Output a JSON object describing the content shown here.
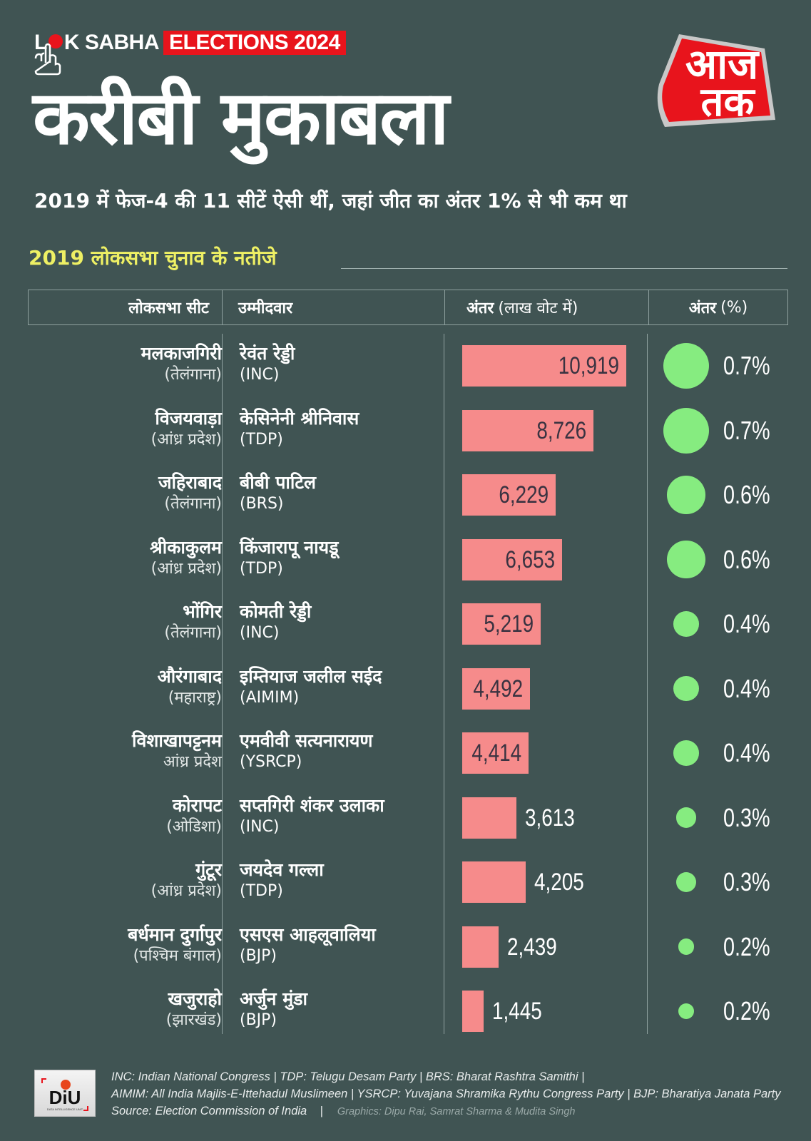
{
  "header": {
    "brand_lok_l": "L",
    "brand_lok_rest": "K SABHA",
    "brand_elections": "ELECTIONS 2024",
    "title": "करीबी मुकाबला",
    "logo_line1": "आज",
    "logo_line2": "तक",
    "subtitle": "2019 में फेज-4 की 11 सीटें ऐसी थीं, जहां जीत का अंतर 1% से भी कम था"
  },
  "section_title": "2019 लोकसभा चुनाव के नतीजे",
  "table_header": {
    "seat": "लोकसभा सीट",
    "candidate": "उम्मीदवार",
    "margin": "अंतर",
    "margin_unit": "(लाख वोट में)",
    "pct": "अंतर",
    "pct_unit": "(%)"
  },
  "colors": {
    "background": "#405453",
    "bar": "#f68b8b",
    "bubble": "#86ec80",
    "brand_red": "#e8141c",
    "section_title": "#eef064"
  },
  "chart_data": {
    "type": "bar",
    "title": "2019 लोकसभा चुनाव के नतीजे",
    "xlabel": "अंतर (लाख वोट में)",
    "ylabel": "लोकसभा सीट",
    "categories": [
      "मलकाजगिरी",
      "विजयवाड़ा",
      "जहिराबाद",
      "श्रीकाकुलम",
      "भोंगिर",
      "औरंगाबाद",
      "विशाखापट्टनम",
      "कोरापट",
      "गुंटूर",
      "बर्धमान दुर्गापुर",
      "खजुराहो"
    ],
    "series": [
      {
        "name": "अंतर (वोट)",
        "values": [
          10919,
          8726,
          6229,
          6653,
          5219,
          4492,
          4414,
          3613,
          4205,
          2439,
          1445
        ]
      },
      {
        "name": "अंतर (%)",
        "values": [
          0.7,
          0.7,
          0.6,
          0.6,
          0.4,
          0.4,
          0.4,
          0.3,
          0.3,
          0.2,
          0.2
        ]
      }
    ],
    "rows": [
      {
        "seat": "मलकाजगिरी",
        "state": "(तेलंगाना)",
        "candidate": "रेवंत रेड्डी",
        "party": "(INC)",
        "margin": 10919,
        "margin_label": "10,919",
        "pct": 0.7,
        "pct_label": "0.7%"
      },
      {
        "seat": "विजयवाड़ा",
        "state": "(आंध्र प्रदेश)",
        "candidate": "केसिनेनी श्रीनिवास",
        "party": "(TDP)",
        "margin": 8726,
        "margin_label": "8,726",
        "pct": 0.7,
        "pct_label": "0.7%"
      },
      {
        "seat": "जहिराबाद",
        "state": "(तेलंगाना)",
        "candidate": "बीबी पाटिल",
        "party": "(BRS)",
        "margin": 6229,
        "margin_label": "6,229",
        "pct": 0.6,
        "pct_label": "0.6%"
      },
      {
        "seat": "श्रीकाकुलम",
        "state": "(आंध्र प्रदेश)",
        "candidate": "किंजारापू नायडू",
        "party": "(TDP)",
        "margin": 6653,
        "margin_label": "6,653",
        "pct": 0.6,
        "pct_label": "0.6%"
      },
      {
        "seat": "भोंगिर",
        "state": "(तेलंगाना)",
        "candidate": "कोमती रेड्डी",
        "party": "(INC)",
        "margin": 5219,
        "margin_label": "5,219",
        "pct": 0.4,
        "pct_label": "0.4%"
      },
      {
        "seat": "औरंगाबाद",
        "state": "(महाराष्ट्र)",
        "candidate": "इम्तियाज जलील सईद",
        "party": "(AIMIM)",
        "margin": 4492,
        "margin_label": "4,492",
        "pct": 0.4,
        "pct_label": "0.4%"
      },
      {
        "seat": "विशाखापट्टनम",
        "state": "आंध्र प्रदेश",
        "candidate": "एमवीवी सत्यनारायण",
        "party": "(YSRCP)",
        "margin": 4414,
        "margin_label": "4,414",
        "pct": 0.4,
        "pct_label": "0.4%"
      },
      {
        "seat": "कोरापट",
        "state": "(ओडिशा)",
        "candidate": "सप्तगिरी शंकर उलाका",
        "party": "(INC)",
        "margin": 3613,
        "margin_label": "3,613",
        "pct": 0.3,
        "pct_label": "0.3%"
      },
      {
        "seat": "गुंटूर",
        "state": "(आंध्र प्रदेश)",
        "candidate": "जयदेव गल्ला",
        "party": "(TDP)",
        "margin": 4205,
        "margin_label": "4,205",
        "pct": 0.3,
        "pct_label": "0.3%"
      },
      {
        "seat": "बर्धमान दुर्गापुर",
        "state": "(पश्चिम बंगाल)",
        "candidate": "एसएस आहलूवालिया",
        "party": "(BJP)",
        "margin": 2439,
        "margin_label": "2,439",
        "pct": 0.2,
        "pct_label": "0.2%"
      },
      {
        "seat": "खजुराहो",
        "state": "(झारखंड)",
        "candidate": "अर्जुन मुंडा",
        "party": "(BJP)",
        "margin": 1445,
        "margin_label": "1,445",
        "pct": 0.2,
        "pct_label": "0.2%"
      }
    ]
  },
  "footer": {
    "logo_text": "DiU",
    "logo_caption": "DATA INTELLIGENCE UNIT",
    "line1": "INC: Indian National Congress | TDP: Telugu Desam Party | BRS: Bharat Rashtra Samithi |",
    "line2": "AIMIM: All India Majlis-E-Ittehadul Muslimeen | YSRCP: Yuvajana Shramika Rythu Congress Party | BJP: Bharatiya Janata Party",
    "source": "Source: Election Commission of India    |",
    "credits": "Graphics: Dipu Rai, Samrat Sharma & Mudita Singh"
  }
}
